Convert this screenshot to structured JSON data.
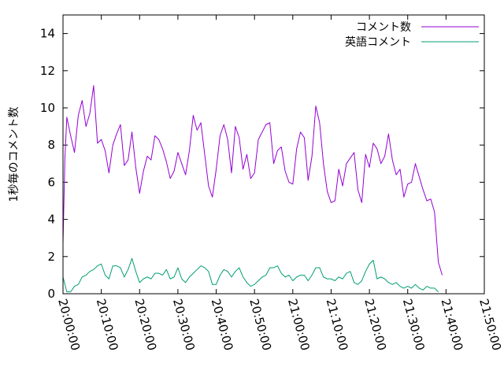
{
  "chart_data": {
    "type": "line",
    "title": "",
    "xlabel": "",
    "ylabel": "1秒毎のコメント数",
    "x_tick_labels": [
      "20:00:00",
      "20:10:00",
      "20:20:00",
      "20:30:00",
      "20:40:00",
      "20:50:00",
      "21:00:00",
      "21:10:00",
      "21:20:00",
      "21:30:00",
      "21:40:00",
      "21:50:00"
    ],
    "xlim": [
      "20:00:00",
      "21:50:00"
    ],
    "ylim": [
      0,
      15
    ],
    "y_ticks": [
      0,
      2,
      4,
      6,
      8,
      10,
      12,
      14
    ],
    "legend_position": "top-right",
    "series": [
      {
        "name": "コメント数",
        "color": "#9400d3",
        "points": [
          [
            "20:00:00",
            2.7
          ],
          [
            "20:00:30",
            7.3
          ],
          [
            "20:01:00",
            9.5
          ],
          [
            "20:02:00",
            8.5
          ],
          [
            "20:03:00",
            7.6
          ],
          [
            "20:04:00",
            9.6
          ],
          [
            "20:05:00",
            10.4
          ],
          [
            "20:06:00",
            9.0
          ],
          [
            "20:07:00",
            9.7
          ],
          [
            "20:08:00",
            11.2
          ],
          [
            "20:09:00",
            8.1
          ],
          [
            "20:10:00",
            8.3
          ],
          [
            "20:11:00",
            7.7
          ],
          [
            "20:12:00",
            6.5
          ],
          [
            "20:13:00",
            8.0
          ],
          [
            "20:14:00",
            8.6
          ],
          [
            "20:15:00",
            9.1
          ],
          [
            "20:16:00",
            6.9
          ],
          [
            "20:17:00",
            7.2
          ],
          [
            "20:18:00",
            8.7
          ],
          [
            "20:19:00",
            6.8
          ],
          [
            "20:20:00",
            5.4
          ],
          [
            "20:21:00",
            6.6
          ],
          [
            "20:22:00",
            7.4
          ],
          [
            "20:23:00",
            7.2
          ],
          [
            "20:24:00",
            8.5
          ],
          [
            "20:25:00",
            8.3
          ],
          [
            "20:26:00",
            7.8
          ],
          [
            "20:27:00",
            7.1
          ],
          [
            "20:28:00",
            6.2
          ],
          [
            "20:29:00",
            6.6
          ],
          [
            "20:30:00",
            7.6
          ],
          [
            "20:31:00",
            7.0
          ],
          [
            "20:32:00",
            6.4
          ],
          [
            "20:33:00",
            7.7
          ],
          [
            "20:34:00",
            9.6
          ],
          [
            "20:35:00",
            8.8
          ],
          [
            "20:36:00",
            9.2
          ],
          [
            "20:37:00",
            7.5
          ],
          [
            "20:38:00",
            5.8
          ],
          [
            "20:39:00",
            5.2
          ],
          [
            "20:40:00",
            6.7
          ],
          [
            "20:41:00",
            8.5
          ],
          [
            "20:42:00",
            9.1
          ],
          [
            "20:43:00",
            8.3
          ],
          [
            "20:44:00",
            6.5
          ],
          [
            "20:45:00",
            9.0
          ],
          [
            "20:46:00",
            8.4
          ],
          [
            "20:47:00",
            6.7
          ],
          [
            "20:48:00",
            7.5
          ],
          [
            "20:49:00",
            6.2
          ],
          [
            "20:50:00",
            6.5
          ],
          [
            "20:51:00",
            8.3
          ],
          [
            "20:52:00",
            8.7
          ],
          [
            "20:53:00",
            9.1
          ],
          [
            "20:54:00",
            9.2
          ],
          [
            "20:55:00",
            7.0
          ],
          [
            "20:56:00",
            7.7
          ],
          [
            "20:57:00",
            7.9
          ],
          [
            "20:58:00",
            6.6
          ],
          [
            "20:59:00",
            6.0
          ],
          [
            "21:00:00",
            5.9
          ],
          [
            "21:01:00",
            7.8
          ],
          [
            "21:02:00",
            8.7
          ],
          [
            "21:03:00",
            8.4
          ],
          [
            "21:04:00",
            6.1
          ],
          [
            "21:05:00",
            7.4
          ],
          [
            "21:06:00",
            10.1
          ],
          [
            "21:07:00",
            9.2
          ],
          [
            "21:08:00",
            7.0
          ],
          [
            "21:09:00",
            5.5
          ],
          [
            "21:10:00",
            4.9
          ],
          [
            "21:11:00",
            5.0
          ],
          [
            "21:12:00",
            6.7
          ],
          [
            "21:13:00",
            5.8
          ],
          [
            "21:14:00",
            7.0
          ],
          [
            "21:15:00",
            7.3
          ],
          [
            "21:16:00",
            7.6
          ],
          [
            "21:17:00",
            5.6
          ],
          [
            "21:18:00",
            4.9
          ],
          [
            "21:19:00",
            7.5
          ],
          [
            "21:20:00",
            6.8
          ],
          [
            "21:21:00",
            8.1
          ],
          [
            "21:22:00",
            7.8
          ],
          [
            "21:23:00",
            7.0
          ],
          [
            "21:24:00",
            7.4
          ],
          [
            "21:25:00",
            8.6
          ],
          [
            "21:26:00",
            7.2
          ],
          [
            "21:27:00",
            6.4
          ],
          [
            "21:28:00",
            6.7
          ],
          [
            "21:29:00",
            5.2
          ],
          [
            "21:30:00",
            5.9
          ],
          [
            "21:31:00",
            6.0
          ],
          [
            "21:32:00",
            7.0
          ],
          [
            "21:33:00",
            6.3
          ],
          [
            "21:34:00",
            5.6
          ],
          [
            "21:35:00",
            5.0
          ],
          [
            "21:36:00",
            5.1
          ],
          [
            "21:37:00",
            4.4
          ],
          [
            "21:38:00",
            1.7
          ],
          [
            "21:39:00",
            1.0
          ]
        ]
      },
      {
        "name": "英語コメント",
        "color": "#009e73",
        "points": [
          [
            "20:00:00",
            0.9
          ],
          [
            "20:01:00",
            0.1
          ],
          [
            "20:02:00",
            0.1
          ],
          [
            "20:03:00",
            0.4
          ],
          [
            "20:04:00",
            0.5
          ],
          [
            "20:05:00",
            0.9
          ],
          [
            "20:06:00",
            1.0
          ],
          [
            "20:07:00",
            1.2
          ],
          [
            "20:08:00",
            1.3
          ],
          [
            "20:09:00",
            1.5
          ],
          [
            "20:10:00",
            1.6
          ],
          [
            "20:11:00",
            1.0
          ],
          [
            "20:12:00",
            0.8
          ],
          [
            "20:13:00",
            1.5
          ],
          [
            "20:14:00",
            1.5
          ],
          [
            "20:15:00",
            1.4
          ],
          [
            "20:16:00",
            0.9
          ],
          [
            "20:17:00",
            1.3
          ],
          [
            "20:18:00",
            1.9
          ],
          [
            "20:19:00",
            1.2
          ],
          [
            "20:20:00",
            0.6
          ],
          [
            "20:21:00",
            0.8
          ],
          [
            "20:22:00",
            0.9
          ],
          [
            "20:23:00",
            0.8
          ],
          [
            "20:24:00",
            1.1
          ],
          [
            "20:25:00",
            1.1
          ],
          [
            "20:26:00",
            1.0
          ],
          [
            "20:27:00",
            1.3
          ],
          [
            "20:28:00",
            0.8
          ],
          [
            "20:29:00",
            0.9
          ],
          [
            "20:30:00",
            1.4
          ],
          [
            "20:31:00",
            0.8
          ],
          [
            "20:32:00",
            0.6
          ],
          [
            "20:33:00",
            0.9
          ],
          [
            "20:34:00",
            1.1
          ],
          [
            "20:35:00",
            1.3
          ],
          [
            "20:36:00",
            1.5
          ],
          [
            "20:37:00",
            1.4
          ],
          [
            "20:38:00",
            1.2
          ],
          [
            "20:39:00",
            0.5
          ],
          [
            "20:40:00",
            0.5
          ],
          [
            "20:41:00",
            1.0
          ],
          [
            "20:42:00",
            1.3
          ],
          [
            "20:43:00",
            1.2
          ],
          [
            "20:44:00",
            0.9
          ],
          [
            "20:45:00",
            1.2
          ],
          [
            "20:46:00",
            1.4
          ],
          [
            "20:47:00",
            0.9
          ],
          [
            "20:48:00",
            0.6
          ],
          [
            "20:49:00",
            0.4
          ],
          [
            "20:50:00",
            0.5
          ],
          [
            "20:51:00",
            0.7
          ],
          [
            "20:52:00",
            0.9
          ],
          [
            "20:53:00",
            1.0
          ],
          [
            "20:54:00",
            1.4
          ],
          [
            "20:55:00",
            1.4
          ],
          [
            "20:56:00",
            1.5
          ],
          [
            "20:57:00",
            1.1
          ],
          [
            "20:58:00",
            0.9
          ],
          [
            "20:59:00",
            1.0
          ],
          [
            "21:00:00",
            0.7
          ],
          [
            "21:01:00",
            0.9
          ],
          [
            "21:02:00",
            1.0
          ],
          [
            "21:03:00",
            1.0
          ],
          [
            "21:04:00",
            0.7
          ],
          [
            "21:05:00",
            1.0
          ],
          [
            "21:06:00",
            1.4
          ],
          [
            "21:07:00",
            1.4
          ],
          [
            "21:08:00",
            0.9
          ],
          [
            "21:09:00",
            0.8
          ],
          [
            "21:10:00",
            0.8
          ],
          [
            "21:11:00",
            0.7
          ],
          [
            "21:12:00",
            0.9
          ],
          [
            "21:13:00",
            0.8
          ],
          [
            "21:14:00",
            1.1
          ],
          [
            "21:15:00",
            1.2
          ],
          [
            "21:16:00",
            0.6
          ],
          [
            "21:17:00",
            0.5
          ],
          [
            "21:18:00",
            0.7
          ],
          [
            "21:19:00",
            1.2
          ],
          [
            "21:20:00",
            1.6
          ],
          [
            "21:21:00",
            1.8
          ],
          [
            "21:22:00",
            0.8
          ],
          [
            "21:23:00",
            0.9
          ],
          [
            "21:24:00",
            0.8
          ],
          [
            "21:25:00",
            0.6
          ],
          [
            "21:26:00",
            0.5
          ],
          [
            "21:27:00",
            0.6
          ],
          [
            "21:28:00",
            0.4
          ],
          [
            "21:29:00",
            0.3
          ],
          [
            "21:30:00",
            0.4
          ],
          [
            "21:31:00",
            0.3
          ],
          [
            "21:32:00",
            0.5
          ],
          [
            "21:33:00",
            0.3
          ],
          [
            "21:34:00",
            0.2
          ],
          [
            "21:35:00",
            0.4
          ],
          [
            "21:36:00",
            0.3
          ],
          [
            "21:37:00",
            0.3
          ],
          [
            "21:38:00",
            0.1
          ]
        ]
      }
    ]
  }
}
